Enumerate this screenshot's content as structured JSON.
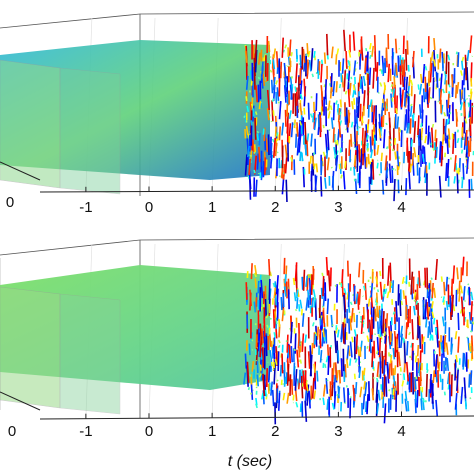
{
  "chart_data": [
    {
      "type": "surface",
      "panel": "top",
      "xlabel": "",
      "x_ticks": [
        "-1",
        "0",
        "1",
        "2",
        "3",
        "4"
      ],
      "side_ticks": [
        "0"
      ],
      "xlim": [
        -1.6,
        5.0
      ],
      "transparent_slice_at": [
        -1,
        0
      ],
      "low_amplitude_until": 2,
      "grid": true,
      "colormap": "jet"
    },
    {
      "type": "surface",
      "panel": "bottom",
      "xlabel": "t (sec)",
      "x_ticks": [
        "-1",
        "0",
        "1",
        "2",
        "3",
        "4"
      ],
      "side_ticks": [
        "0"
      ],
      "xlim": [
        -1.6,
        5.0
      ],
      "transparent_slice_at": [
        -1,
        0
      ],
      "low_amplitude_until": 2,
      "grid": true,
      "colormap": "jet"
    }
  ]
}
